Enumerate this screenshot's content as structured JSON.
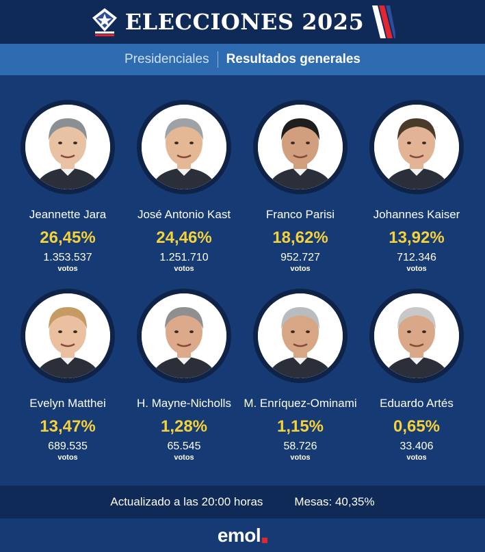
{
  "header": {
    "title": "ELECCIONES 2025"
  },
  "subheader": {
    "left": "Presidenciales",
    "right": "Resultados generales"
  },
  "candidates": [
    {
      "name": "Jeannette Jara",
      "percent": "26,45%",
      "votes": "1.353.537",
      "unit": "votos",
      "hair": "#8a8f93",
      "skin": "#e9c2a4"
    },
    {
      "name": "José Antonio Kast",
      "percent": "24,46%",
      "votes": "1.251.710",
      "unit": "votos",
      "hair": "#9ea2a5",
      "skin": "#e4b795"
    },
    {
      "name": "Franco Parisi",
      "percent": "18,62%",
      "votes": "952.727",
      "unit": "votos",
      "hair": "#1e1e1e",
      "skin": "#d19f7e"
    },
    {
      "name": "Johannes Kaiser",
      "percent": "13,92%",
      "votes": "712.346",
      "unit": "votos",
      "hair": "#4a3a2a",
      "skin": "#e2b394"
    },
    {
      "name": "Evelyn Matthei",
      "percent": "13,47%",
      "votes": "689.535",
      "unit": "votos",
      "hair": "#c59a63",
      "skin": "#eac0a0"
    },
    {
      "name": "H. Mayne-Nicholls",
      "percent": "1,28%",
      "votes": "65.545",
      "unit": "votos",
      "hair": "#8d8f90",
      "skin": "#dcaa8a"
    },
    {
      "name": "M. Enríquez-Ominami",
      "percent": "1,15%",
      "votes": "58.726",
      "unit": "votos",
      "hair": "#b9bcbe",
      "skin": "#d6a685"
    },
    {
      "name": "Eduardo Artés",
      "percent": "0,65%",
      "votes": "33.406",
      "unit": "votos",
      "hair": "#c8c8c8",
      "skin": "#d9a888"
    }
  ],
  "footer": {
    "updated": "Actualizado a las 20:00 horas",
    "mesas": "Mesas: 40,35%"
  },
  "brand": {
    "name": "emol"
  },
  "colors": {
    "header_bg": "#0f2a57",
    "subbar_bg": "#2e6bb0",
    "body_bg": "#163a73",
    "percent": "#f6d23a",
    "flag_red": "#e3262f"
  },
  "icons": {
    "logo": "chile-star-shield-icon",
    "flag": "flag-stripes-icon"
  }
}
